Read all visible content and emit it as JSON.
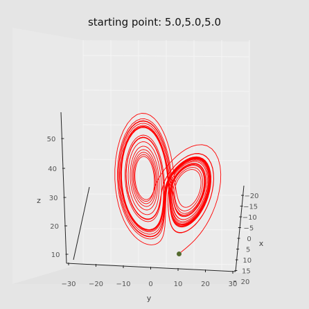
{
  "chart_data": {
    "type": "line",
    "projection": "3d",
    "title": "starting point: 5.0,5.0,5.0",
    "xlabel": "x",
    "ylabel": "y",
    "zlabel": "z",
    "xlim": [
      -20,
      20
    ],
    "ylim": [
      -30,
      30
    ],
    "zlim": [
      5,
      55
    ],
    "x_ticks": [
      -20,
      -15,
      -10,
      -5,
      0,
      5,
      10,
      15,
      20
    ],
    "y_ticks": [
      -30,
      -20,
      -10,
      0,
      10,
      20,
      30
    ],
    "z_ticks": [
      10,
      20,
      30,
      40,
      50
    ],
    "grid": true,
    "series": [
      {
        "color": "#ff0000",
        "system": "lorenz",
        "parameters": {
          "sigma": 10,
          "rho": 28,
          "beta": 2.6667
        },
        "start": [
          5.0,
          5.0,
          5.0
        ]
      }
    ],
    "marker": {
      "point": [
        5.0,
        5.0,
        5.0
      ],
      "color": "#556b2f"
    }
  }
}
